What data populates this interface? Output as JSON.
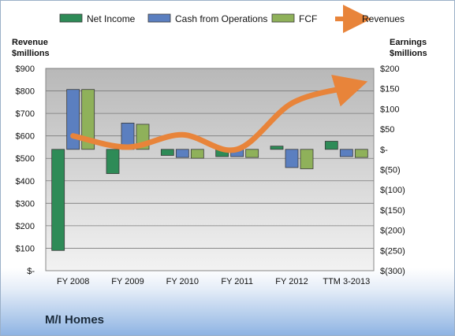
{
  "company_name": "M/I Homes",
  "colors": {
    "net_income": "#2e8b57",
    "cash_from_operations": "#5b7fc0",
    "fcf": "#8fb15a",
    "revenues": "#e8843a"
  },
  "chart_data": {
    "type": "bar",
    "categories": [
      "FY 2008",
      "FY 2009",
      "FY 2010",
      "FY 2011",
      "FY 2012",
      "TTM 3-2013"
    ],
    "series": [
      {
        "name": "Net Income",
        "axis": "right",
        "kind": "bar",
        "values": [
          -250,
          -60,
          -15,
          -18,
          8,
          20
        ]
      },
      {
        "name": "Cash from Operations",
        "axis": "right",
        "kind": "bar",
        "values": [
          148,
          65,
          -20,
          -18,
          -45,
          -18
        ]
      },
      {
        "name": "FCF",
        "axis": "right",
        "kind": "bar",
        "values": [
          148,
          62,
          -22,
          -20,
          -48,
          -20
        ]
      },
      {
        "name": "Revenues",
        "axis": "left",
        "kind": "line",
        "values": [
          600,
          550,
          605,
          540,
          745,
          815
        ]
      }
    ],
    "left_axis": {
      "title_line1": "Revenue",
      "title_line2": "$millions",
      "ylim": [
        0,
        900
      ],
      "ticks": [
        0,
        100,
        200,
        300,
        400,
        500,
        600,
        700,
        800,
        900
      ],
      "tick_labels": [
        "$-",
        "$100",
        "$200",
        "$300",
        "$400",
        "$500",
        "$600",
        "$700",
        "$800",
        "$900"
      ]
    },
    "right_axis": {
      "title_line1": "Earnings",
      "title_line2": "$millions",
      "ylim": [
        -300,
        200
      ],
      "ticks": [
        -300,
        -250,
        -200,
        -150,
        -100,
        -50,
        0,
        50,
        100,
        150,
        200
      ],
      "tick_labels": [
        "$(300)",
        "$(250)",
        "$(200)",
        "$(150)",
        "$(100)",
        "$(50)",
        "$-",
        "$50",
        "$100",
        "$150",
        "$200"
      ]
    },
    "legend_position": "top",
    "grid": true
  }
}
